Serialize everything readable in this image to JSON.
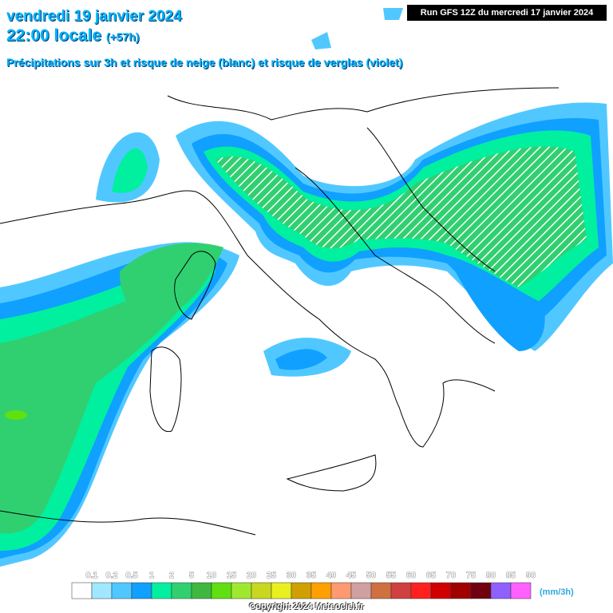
{
  "header": {
    "date": "vendredi 19 janvier 2024",
    "time": "22:00 locale",
    "offset": "(+57h)",
    "subtitle": "Précipitations sur 3h et risque de neige (blanc) et risque de verglas (violet)",
    "run": "Run GFS 12Z du mercredi 17 janvier 2024"
  },
  "legend": {
    "labels": [
      "0.1",
      "0.2",
      "0.5",
      "1",
      "2",
      "5",
      "10",
      "15",
      "20",
      "25",
      "30",
      "35",
      "40",
      "45",
      "50",
      "55",
      "60",
      "65",
      "70",
      "75",
      "80",
      "85",
      "90"
    ],
    "colors": [
      "#ffffff",
      "#a0e8ff",
      "#50c8ff",
      "#10a0ff",
      "#00f0a0",
      "#30d070",
      "#40b840",
      "#60e010",
      "#a0e830",
      "#c8d820",
      "#e8f020",
      "#d0a000",
      "#ffa000",
      "#ff9a70",
      "#d0a0a0",
      "#d07040",
      "#d04040",
      "#ff2020",
      "#d00000",
      "#a00000",
      "#700010",
      "#9060ff",
      "#ff60ff"
    ],
    "unit": "(mm/3h)"
  },
  "footer": {
    "copyright": "Copyright 2024 Meteociel.fr"
  }
}
